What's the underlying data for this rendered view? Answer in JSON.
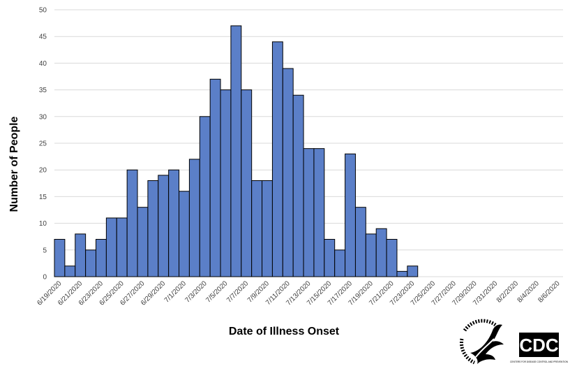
{
  "chart_data": {
    "type": "bar",
    "xlabel": "Date of Illness Onset",
    "ylabel": "Number of People",
    "ylim": [
      0,
      50
    ],
    "yticks": [
      0,
      5,
      10,
      15,
      20,
      25,
      30,
      35,
      40,
      45,
      50
    ],
    "grid": true,
    "bar_color": "#5b7fc8",
    "categories": [
      "6/19/2020",
      "6/20/2020",
      "6/21/2020",
      "6/22/2020",
      "6/23/2020",
      "6/24/2020",
      "6/25/2020",
      "6/26/2020",
      "6/27/2020",
      "6/28/2020",
      "6/29/2020",
      "6/30/2020",
      "7/1/2020",
      "7/2/2020",
      "7/3/2020",
      "7/4/2020",
      "7/5/2020",
      "7/6/2020",
      "7/7/2020",
      "7/8/2020",
      "7/9/2020",
      "7/10/2020",
      "7/11/2020",
      "7/12/2020",
      "7/13/2020",
      "7/14/2020",
      "7/15/2020",
      "7/16/2020",
      "7/17/2020",
      "7/18/2020",
      "7/19/2020",
      "7/20/2020",
      "7/21/2020",
      "7/22/2020",
      "7/23/2020",
      "7/24/2020",
      "7/25/2020",
      "7/26/2020",
      "7/27/2020",
      "7/28/2020",
      "7/29/2020",
      "7/30/2020",
      "7/31/2020",
      "8/1/2020",
      "8/2/2020",
      "8/3/2020",
      "8/4/2020",
      "8/5/2020",
      "8/6/2020"
    ],
    "values": [
      7,
      2,
      8,
      5,
      7,
      11,
      11,
      20,
      13,
      18,
      19,
      20,
      16,
      22,
      30,
      37,
      35,
      47,
      35,
      18,
      18,
      44,
      39,
      34,
      24,
      24,
      7,
      5,
      23,
      13,
      8,
      9,
      7,
      1,
      2,
      0,
      0,
      0,
      0,
      0,
      0,
      0,
      0,
      0,
      0,
      0,
      0,
      0,
      0
    ],
    "tick_labels": [
      "6/19/2020",
      "6/21/2020",
      "6/23/2020",
      "6/25/2020",
      "6/27/2020",
      "6/29/2020",
      "7/1/2020",
      "7/3/2020",
      "7/5/2020",
      "7/7/2020",
      "7/9/2020",
      "7/11/2020",
      "7/13/2020",
      "7/15/2020",
      "7/17/2020",
      "7/19/2020",
      "7/21/2020",
      "7/23/2020",
      "7/25/2020",
      "7/27/2020",
      "7/29/2020",
      "7/31/2020",
      "8/2/2020",
      "8/4/2020",
      "8/6/2020"
    ]
  },
  "logos": {
    "hhs": {
      "icon": "hhs-eagle-seal-icon",
      "text": "DEPARTMENT OF HEALTH & HUMAN SERVICES · USA"
    },
    "cdc": {
      "icon": "cdc-logo-icon",
      "text": "CDC",
      "subtext": "CENTERS FOR DISEASE CONTROL AND PREVENTION"
    }
  }
}
